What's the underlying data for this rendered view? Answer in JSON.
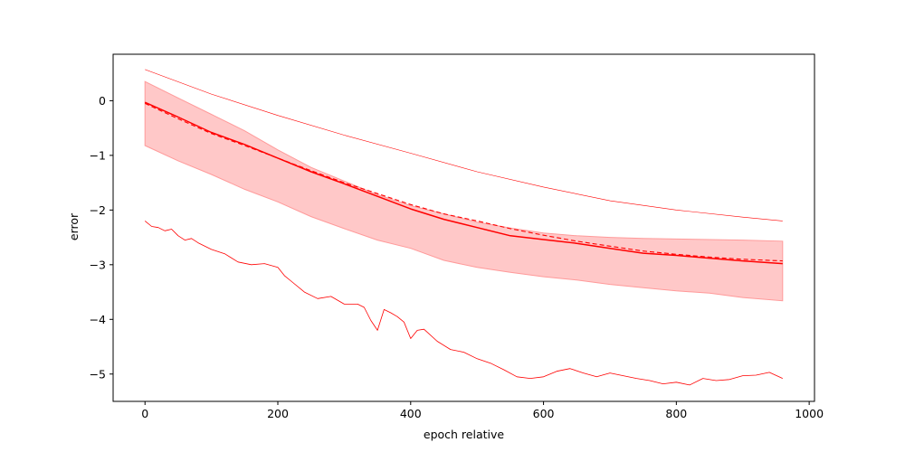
{
  "chart_data": {
    "type": "line",
    "title": "",
    "xlabel": "epoch relative",
    "ylabel": "error",
    "xlim": [
      -48,
      1008
    ],
    "ylim": [
      -5.5,
      0.85
    ],
    "xticks": [
      0,
      200,
      400,
      600,
      800,
      1000
    ],
    "xtick_labels": [
      "0",
      "200",
      "400",
      "600",
      "800",
      "1000"
    ],
    "yticks": [
      0,
      -1,
      -2,
      -3,
      -4,
      -5
    ],
    "ytick_labels": [
      "0",
      "−1",
      "−2",
      "−3",
      "−4",
      "−5"
    ],
    "grid": false,
    "legend": "none",
    "colors": {
      "line": "#ff0000",
      "band": "#ffc8c8",
      "band_edge": "#ff9a9a"
    },
    "band": {
      "x": [
        0,
        50,
        100,
        150,
        200,
        250,
        300,
        350,
        400,
        450,
        500,
        550,
        600,
        650,
        700,
        750,
        800,
        850,
        900,
        960
      ],
      "upper": [
        0.35,
        0.05,
        -0.25,
        -0.55,
        -0.9,
        -1.22,
        -1.47,
        -1.72,
        -1.92,
        -2.07,
        -2.22,
        -2.33,
        -2.42,
        -2.47,
        -2.5,
        -2.52,
        -2.53,
        -2.54,
        -2.55,
        -2.57
      ],
      "lower": [
        -0.82,
        -1.1,
        -1.35,
        -1.62,
        -1.85,
        -2.12,
        -2.34,
        -2.55,
        -2.7,
        -2.92,
        -3.05,
        -3.14,
        -3.22,
        -3.28,
        -3.36,
        -3.42,
        -3.48,
        -3.52,
        -3.6,
        -3.66
      ]
    },
    "series": [
      {
        "style": "solid",
        "x": [
          0,
          50,
          100,
          150,
          200,
          250,
          300,
          350,
          400,
          450,
          500,
          550,
          600,
          650,
          700,
          750,
          800,
          850,
          900,
          960
        ],
        "values": [
          -0.03,
          -0.3,
          -0.58,
          -0.8,
          -1.05,
          -1.3,
          -1.52,
          -1.75,
          -1.98,
          -2.17,
          -2.32,
          -2.47,
          -2.54,
          -2.61,
          -2.7,
          -2.79,
          -2.83,
          -2.88,
          -2.93,
          -2.98
        ]
      },
      {
        "style": "dashed",
        "x": [
          0,
          50,
          100,
          150,
          200,
          250,
          300,
          350,
          400,
          450,
          500,
          550,
          600,
          650,
          700,
          750,
          800,
          850,
          900,
          960
        ],
        "values": [
          -0.05,
          -0.33,
          -0.6,
          -0.82,
          -1.05,
          -1.28,
          -1.5,
          -1.7,
          -1.9,
          -2.07,
          -2.2,
          -2.34,
          -2.46,
          -2.57,
          -2.66,
          -2.75,
          -2.81,
          -2.86,
          -2.9,
          -2.93
        ]
      },
      {
        "style": "thin",
        "x": [
          0,
          100,
          200,
          300,
          400,
          500,
          600,
          700,
          800,
          900,
          960
        ],
        "values": [
          0.57,
          0.12,
          -0.27,
          -0.63,
          -0.96,
          -1.3,
          -1.58,
          -1.83,
          -2.0,
          -2.13,
          -2.2
        ]
      },
      {
        "style": "noisy",
        "x": [
          0,
          10,
          20,
          30,
          40,
          50,
          60,
          70,
          80,
          100,
          120,
          140,
          160,
          180,
          200,
          210,
          220,
          240,
          260,
          280,
          300,
          320,
          330,
          340,
          350,
          360,
          370,
          380,
          390,
          400,
          410,
          420,
          440,
          460,
          480,
          500,
          520,
          540,
          560,
          580,
          600,
          620,
          640,
          660,
          680,
          700,
          720,
          740,
          760,
          780,
          800,
          820,
          840,
          860,
          880,
          900,
          920,
          940,
          960
        ],
        "values": [
          -2.2,
          -2.3,
          -2.32,
          -2.38,
          -2.35,
          -2.47,
          -2.55,
          -2.52,
          -2.6,
          -2.72,
          -2.8,
          -2.95,
          -3.0,
          -2.98,
          -3.05,
          -3.2,
          -3.3,
          -3.5,
          -3.62,
          -3.58,
          -3.72,
          -3.72,
          -3.78,
          -4.02,
          -4.2,
          -3.82,
          -3.88,
          -3.95,
          -4.05,
          -4.35,
          -4.2,
          -4.18,
          -4.4,
          -4.55,
          -4.6,
          -4.72,
          -4.8,
          -4.92,
          -5.05,
          -5.08,
          -5.05,
          -4.95,
          -4.9,
          -4.98,
          -5.05,
          -4.98,
          -5.03,
          -5.08,
          -5.12,
          -5.18,
          -5.15,
          -5.2,
          -5.08,
          -5.12,
          -5.1,
          -5.03,
          -5.02,
          -4.97,
          -5.08
        ]
      }
    ]
  }
}
